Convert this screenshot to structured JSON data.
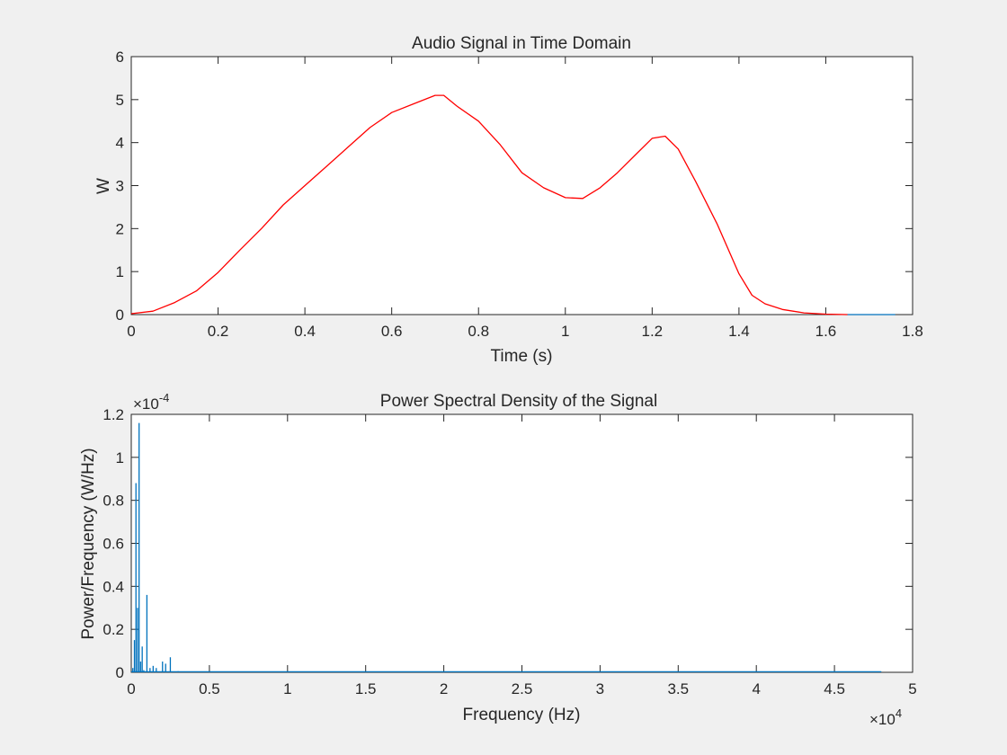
{
  "figure": {
    "background": "#f0f0f0",
    "axes_background": "#ffffff"
  },
  "chart_data": [
    {
      "type": "line",
      "title": "Audio Signal in Time Domain",
      "xlabel": "Time (s)",
      "ylabel": "W",
      "xlim": [
        0,
        1.8
      ],
      "ylim": [
        0,
        6
      ],
      "xticks": [
        0,
        0.2,
        0.4,
        0.6,
        0.8,
        1,
        1.2,
        1.4,
        1.6,
        1.8
      ],
      "xtick_labels": [
        "0",
        "0.2",
        "0.4",
        "0.6",
        "0.8",
        "1",
        "1.2",
        "1.4",
        "1.6",
        "1.8"
      ],
      "yticks": [
        0,
        1,
        2,
        3,
        4,
        5,
        6
      ],
      "ytick_labels": [
        "0",
        "1",
        "2",
        "3",
        "4",
        "5",
        "6"
      ],
      "grid": false,
      "series": [
        {
          "color": "#ff0000",
          "x": [
            0,
            0.05,
            0.1,
            0.15,
            0.2,
            0.25,
            0.3,
            0.35,
            0.4,
            0.45,
            0.5,
            0.55,
            0.6,
            0.65,
            0.7,
            0.72,
            0.75,
            0.8,
            0.85,
            0.9,
            0.95,
            1.0,
            1.04,
            1.08,
            1.12,
            1.16,
            1.2,
            1.23,
            1.26,
            1.3,
            1.35,
            1.4,
            1.43,
            1.46,
            1.5,
            1.55,
            1.6,
            1.65
          ],
          "y": [
            0.02,
            0.08,
            0.28,
            0.55,
            0.98,
            1.5,
            2.0,
            2.55,
            3.0,
            3.45,
            3.9,
            4.35,
            4.7,
            4.9,
            5.1,
            5.1,
            4.85,
            4.5,
            3.95,
            3.3,
            2.95,
            2.72,
            2.7,
            2.95,
            3.3,
            3.7,
            4.1,
            4.15,
            3.85,
            3.1,
            2.1,
            0.95,
            0.45,
            0.25,
            0.12,
            0.04,
            0.01,
            0.0
          ]
        },
        {
          "color": "#0072bd",
          "x": [
            1.65,
            1.7,
            1.76
          ],
          "y": [
            0.0,
            0.0,
            0.0
          ]
        }
      ]
    },
    {
      "type": "bar",
      "title": "Power Spectral Density of the Signal",
      "xlabel": "Frequency (Hz)",
      "ylabel": "Power/Frequency (W/Hz)",
      "xlim": [
        0,
        5
      ],
      "ylim": [
        0,
        1.2
      ],
      "x_multiplier_label": "×10",
      "x_multiplier_exponent": "4",
      "y_multiplier_label": "×10",
      "y_multiplier_exponent": "-4",
      "xticks": [
        0,
        0.5,
        1,
        1.5,
        2,
        2.5,
        3,
        3.5,
        4,
        4.5,
        5
      ],
      "xtick_labels": [
        "0",
        "0.5",
        "1",
        "1.5",
        "2",
        "2.5",
        "3",
        "3.5",
        "4",
        "4.5",
        "5"
      ],
      "yticks": [
        0,
        0.2,
        0.4,
        0.6,
        0.8,
        1,
        1.2
      ],
      "ytick_labels": [
        "0",
        "0.2",
        "0.4",
        "0.6",
        "0.8",
        "1",
        "1.2"
      ],
      "grid": false,
      "series": [
        {
          "color": "#0072bd",
          "x": [
            0.01,
            0.02,
            0.03,
            0.04,
            0.05,
            0.06,
            0.07,
            0.08,
            0.1,
            0.12,
            0.14,
            0.16,
            0.2,
            0.22,
            0.25,
            0.3,
            0.35
          ],
          "y": [
            0.02,
            0.15,
            0.88,
            0.3,
            1.16,
            0.05,
            0.12,
            0.01,
            0.36,
            0.02,
            0.03,
            0.02,
            0.05,
            0.04,
            0.07,
            0.005,
            0.003
          ]
        }
      ],
      "noise_floor_xlim": [
        0,
        4.8
      ]
    }
  ]
}
